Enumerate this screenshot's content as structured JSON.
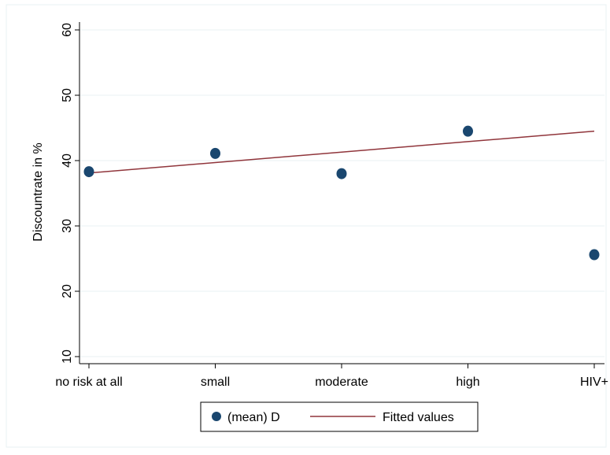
{
  "chart_data": {
    "type": "scatter",
    "title": "",
    "xlabel": "",
    "ylabel": "Discountrate in %",
    "categories": [
      "no risk at all",
      "small",
      "moderate",
      "high",
      "HIV+"
    ],
    "yticks": [
      "10",
      "20",
      "30",
      "40",
      "50",
      "60"
    ],
    "ylim": [
      8,
      62
    ],
    "grid": true,
    "legend_position": "bottom",
    "series": [
      {
        "name": "(mean) D",
        "kind": "scatter",
        "color": "#1a476f",
        "values": [
          38.3,
          41.1,
          38.0,
          44.5,
          25.6
        ]
      },
      {
        "name": "Fitted values",
        "kind": "line",
        "color": "#90353b",
        "values": [
          38.1,
          39.7,
          41.3,
          42.9,
          44.5
        ]
      }
    ]
  }
}
